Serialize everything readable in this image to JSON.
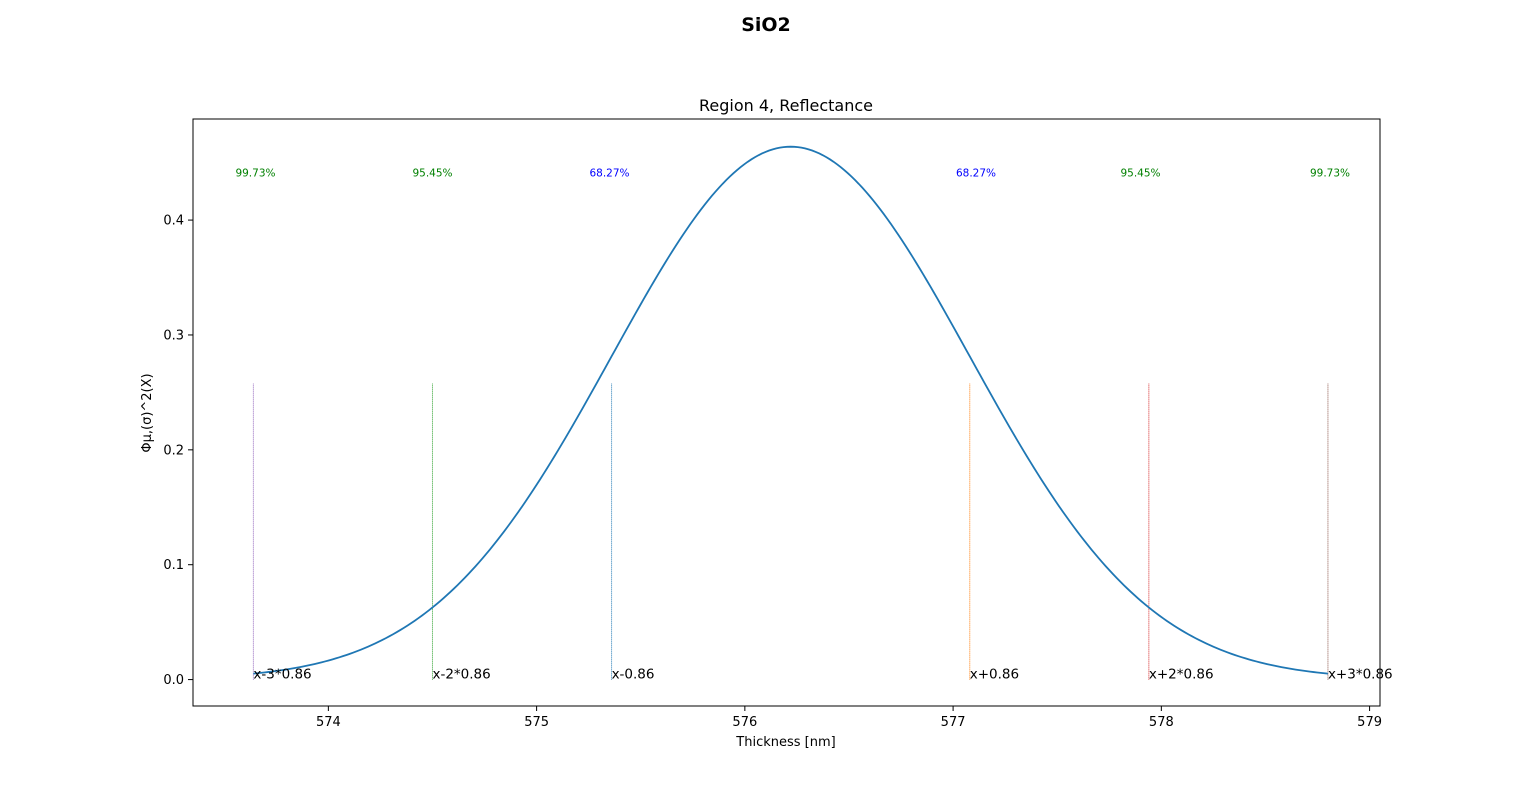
{
  "chart_data": {
    "type": "line",
    "title": "SiO2",
    "subtitle": "Region 4, Reflectance",
    "xlabel": "Thickness [nm]",
    "ylabel": "Φμ,(σ)^2(X)",
    "xlim": [
      573.35,
      579.05
    ],
    "ylim": [
      -0.023,
      0.488
    ],
    "x_ticks": [
      574,
      575,
      576,
      577,
      578,
      579
    ],
    "y_ticks": [
      0.0,
      0.1,
      0.2,
      0.3,
      0.4
    ],
    "y_tick_labels": [
      "0.0",
      "0.1",
      "0.2",
      "0.3",
      "0.4"
    ],
    "grid": false,
    "curve": {
      "color": "#1f77b4",
      "distribution": "normal",
      "mean": 576.22,
      "sigma": 0.86,
      "x_range": [
        573.64,
        578.8
      ]
    },
    "markers": [
      {
        "label": "x-3*0.86",
        "x": 573.64,
        "y_top": 0.258,
        "color": "#9467bd"
      },
      {
        "label": "x-2*0.86",
        "x": 574.5,
        "y_top": 0.258,
        "color": "#2ca02c"
      },
      {
        "label": "x-0.86",
        "x": 575.36,
        "y_top": 0.258,
        "color": "#1f77b4"
      },
      {
        "label": "x+0.86",
        "x": 577.08,
        "y_top": 0.258,
        "color": "#ff7f0e"
      },
      {
        "label": "x+2*0.86",
        "x": 577.94,
        "y_top": 0.258,
        "color": "#d62728"
      },
      {
        "label": "x+3*0.86",
        "x": 578.8,
        "y_top": 0.258,
        "color": "#8c564b"
      }
    ],
    "annotations": [
      {
        "text": "99.73%",
        "x": 573.65,
        "y": 0.438,
        "color": "#008000"
      },
      {
        "text": "95.45%",
        "x": 574.5,
        "y": 0.438,
        "color": "#008000"
      },
      {
        "text": "68.27%",
        "x": 575.35,
        "y": 0.438,
        "color": "#0000ff"
      },
      {
        "text": "68.27%",
        "x": 577.11,
        "y": 0.438,
        "color": "#0000ff"
      },
      {
        "text": "95.45%",
        "x": 577.9,
        "y": 0.438,
        "color": "#008000"
      },
      {
        "text": "99.73%",
        "x": 578.81,
        "y": 0.438,
        "color": "#008000"
      }
    ]
  }
}
